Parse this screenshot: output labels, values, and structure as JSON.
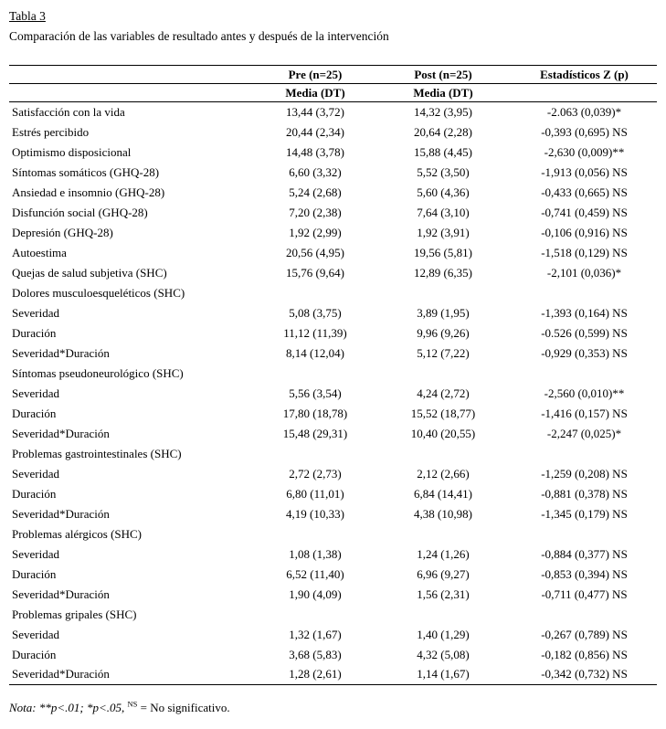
{
  "page": {
    "table_number": "Tabla 3",
    "caption": "Comparación de las variables de resultado antes y después de la intervención"
  },
  "table": {
    "headers": {
      "pre": "Pre (n=25)",
      "post": "Post (n=25)",
      "z": "Estadísticos Z (p)"
    },
    "subheaders": {
      "pre": "Media (DT)",
      "post": "Media (DT)"
    },
    "rows": [
      {
        "label": "Satisfacción con la vida",
        "pre": "13,44 (3,72)",
        "post": "14,32 (3,95)",
        "z": "-2.063 (0,039)*",
        "section": false
      },
      {
        "label": "Estrés percibido",
        "pre": "20,44 (2,34)",
        "post": "20,64 (2,28)",
        "z": "-0,393 (0,695) NS",
        "section": false
      },
      {
        "label": "Optimismo disposicional",
        "pre": "14,48 (3,78)",
        "post": "15,88 (4,45)",
        "z": "-2,630 (0,009)**",
        "section": false
      },
      {
        "label": "Síntomas somáticos (GHQ-28)",
        "pre": "6,60 (3,32)",
        "post": "5,52 (3,50)",
        "z": "-1,913 (0,056) NS",
        "section": false
      },
      {
        "label": "Ansiedad e insomnio (GHQ-28)",
        "pre": "5,24 (2,68)",
        "post": "5,60 (4,36)",
        "z": "-0,433 (0,665) NS",
        "section": false
      },
      {
        "label": "Disfunción social (GHQ-28)",
        "pre": "7,20 (2,38)",
        "post": "7,64 (3,10)",
        "z": "-0,741 (0,459) NS",
        "section": false
      },
      {
        "label": "Depresión (GHQ-28)",
        "pre": "1,92 (2,99)",
        "post": "1,92 (3,91)",
        "z": "-0,106 (0,916) NS",
        "section": false
      },
      {
        "label": "Autoestima",
        "pre": "20,56 (4,95)",
        "post": "19,56 (5,81)",
        "z": "-1,518 (0,129) NS",
        "section": false
      },
      {
        "label": "Quejas de salud subjetiva (SHC)",
        "pre": "15,76 (9,64)",
        "post": "12,89 (6,35)",
        "z": "-2,101 (0,036)*",
        "section": false
      },
      {
        "label": "Dolores musculoesqueléticos (SHC)",
        "pre": "",
        "post": "",
        "z": "",
        "section": true
      },
      {
        "label": "Severidad",
        "pre": "5,08 (3,75)",
        "post": "3,89 (1,95)",
        "z": "-1,393 (0,164) NS",
        "section": false
      },
      {
        "label": "Duración",
        "pre": "11,12 (11,39)",
        "post": "9,96 (9,26)",
        "z": "-0.526 (0,599) NS",
        "section": false
      },
      {
        "label": "Severidad*Duración",
        "pre": "8,14 (12,04)",
        "post": "5,12 (7,22)",
        "z": "-0,929 (0,353) NS",
        "section": false
      },
      {
        "label": "Síntomas pseudoneurológico (SHC)",
        "pre": "",
        "post": "",
        "z": "",
        "section": true
      },
      {
        "label": "Severidad",
        "pre": "5,56 (3,54)",
        "post": "4,24 (2,72)",
        "z": "-2,560 (0,010)**",
        "section": false
      },
      {
        "label": "Duración",
        "pre": "17,80 (18,78)",
        "post": "15,52 (18,77)",
        "z": "-1,416 (0,157) NS",
        "section": false
      },
      {
        "label": "Severidad*Duración",
        "pre": "15,48 (29,31)",
        "post": "10,40 (20,55)",
        "z": "-2,247 (0,025)*",
        "section": false
      },
      {
        "label": "Problemas gastrointestinales (SHC)",
        "pre": "",
        "post": "",
        "z": "",
        "section": true
      },
      {
        "label": "Severidad",
        "pre": "2,72 (2,73)",
        "post": "2,12 (2,66)",
        "z": "-1,259 (0,208) NS",
        "section": false
      },
      {
        "label": "Duración",
        "pre": "6,80 (11,01)",
        "post": "6,84 (14,41)",
        "z": "-0,881 (0,378) NS",
        "section": false
      },
      {
        "label": "Severidad*Duración",
        "pre": "4,19 (10,33)",
        "post": "4,38 (10,98)",
        "z": "-1,345 (0,179) NS",
        "section": false
      },
      {
        "label": "Problemas alérgicos (SHC)",
        "pre": "",
        "post": "",
        "z": "",
        "section": true
      },
      {
        "label": "Severidad",
        "pre": "1,08 (1,38)",
        "post": "1,24 (1,26)",
        "z": "-0,884 (0,377) NS",
        "section": false
      },
      {
        "label": "Duración",
        "pre": "6,52 (11,40)",
        "post": "6,96 (9,27)",
        "z": "-0,853 (0,394) NS",
        "section": false
      },
      {
        "label": "Severidad*Duración",
        "pre": "1,90 (4,09)",
        "post": "1,56 (2,31)",
        "z": "-0,711 (0,477) NS",
        "section": false
      },
      {
        "label": "Problemas gripales (SHC)",
        "pre": "",
        "post": "",
        "z": "",
        "section": true
      },
      {
        "label": "Severidad",
        "pre": "1,32 (1,67)",
        "post": "1,40 (1,29)",
        "z": "-0,267 (0,789) NS",
        "section": false
      },
      {
        "label": "Duración",
        "pre": "3,68 (5,83)",
        "post": "4,32 (5,08)",
        "z": "-0,182 (0,856) NS",
        "section": false
      },
      {
        "label": "Severidad*Duración",
        "pre": "1,28 (2,61)",
        "post": "1,14 (1,67)",
        "z": "-0,342 (0,732) NS",
        "section": false
      }
    ]
  },
  "note": {
    "label": "Nota:",
    "significance": "**p<.01; *p<.05,",
    "superscript": "NS",
    "definition": "= No significativo."
  }
}
